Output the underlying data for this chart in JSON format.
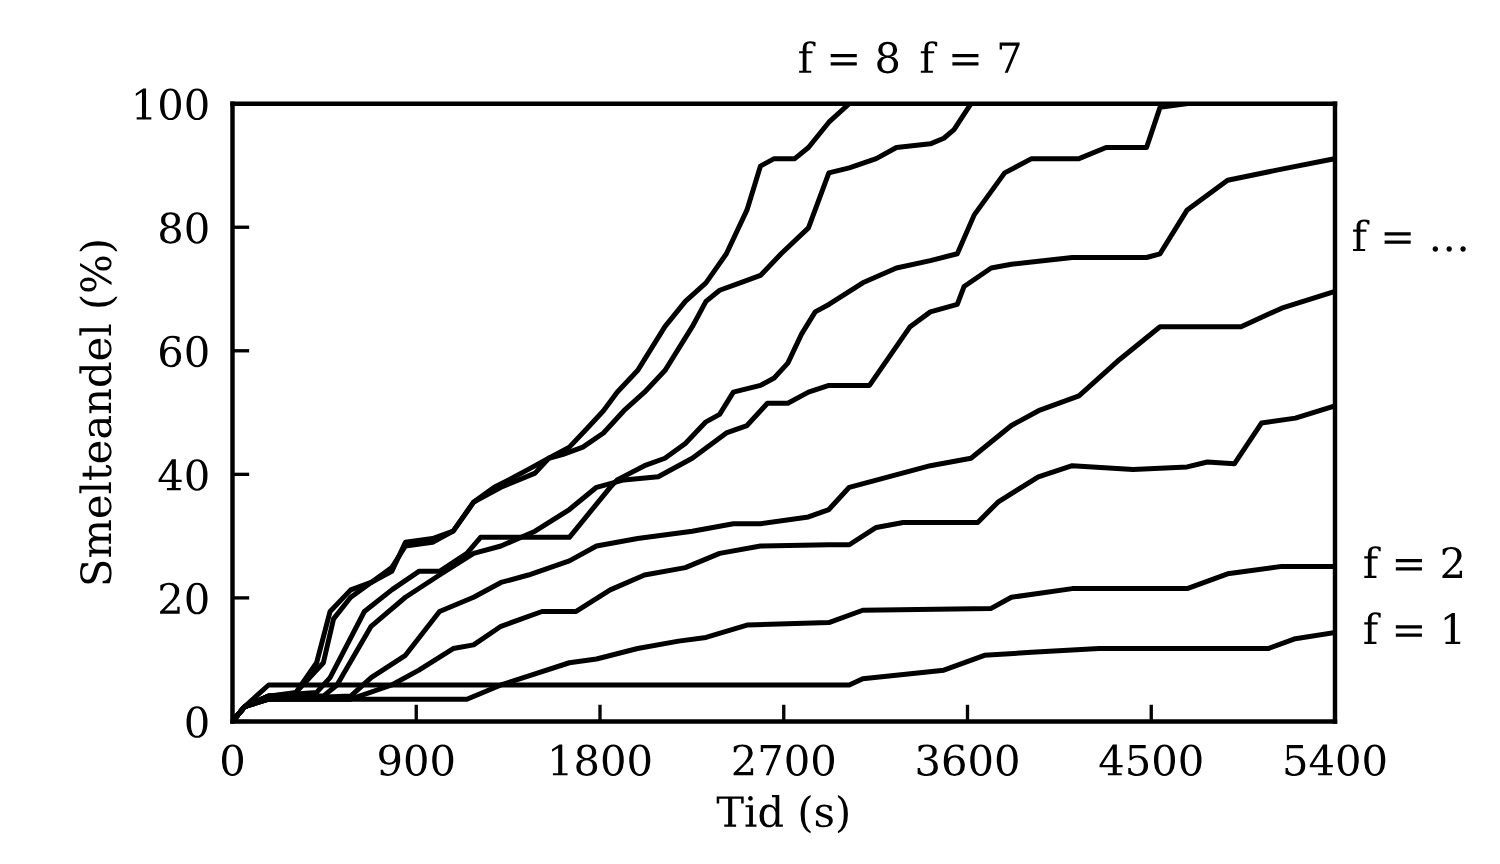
{
  "chart_data": {
    "type": "line",
    "xlabel": "Tid (s)",
    "ylabel": "Smelteandel (%)",
    "xlim": [
      0,
      5400
    ],
    "ylim": [
      0,
      100
    ],
    "xticks": [
      0,
      900,
      1800,
      2700,
      3600,
      4500,
      5400
    ],
    "yticks": [
      0,
      20,
      40,
      60,
      80,
      100
    ],
    "grid": false,
    "legend": false,
    "marker": "none",
    "line_style": "solid",
    "annotations": [
      "f = …"
    ],
    "series": [
      {
        "name": "f = 8",
        "color": "#000000",
        "x": [
          0,
          60,
          177,
          278,
          311,
          412,
          478,
          579,
          679,
          780,
          847,
          980,
          1081,
          1181,
          1282,
          1382,
          1449,
          1549,
          1650,
          1733,
          1817,
          1884,
          1984,
          2118,
          2218,
          2319,
          2419,
          2520,
          2586,
          2653,
          2754,
          2821,
          2921,
          3021
        ],
        "values": [
          0,
          2.4,
          4.1,
          4.1,
          4.7,
          9.5,
          17.8,
          21.3,
          22.5,
          24.9,
          28.4,
          29.0,
          30.8,
          35.5,
          37.9,
          39.6,
          40.8,
          42.6,
          44.4,
          47.3,
          50.3,
          53.3,
          56.8,
          63.9,
          68.0,
          71.0,
          75.7,
          82.8,
          89.9,
          91.1,
          91.1,
          92.9,
          97.0,
          100
        ]
      },
      {
        "name": "f = 7",
        "color": "#000000",
        "x": [
          0,
          60,
          177,
          311,
          378,
          445,
          495,
          579,
          679,
          780,
          847,
          980,
          1081,
          1181,
          1315,
          1482,
          1549,
          1616,
          1716,
          1817,
          1917,
          2018,
          2118,
          2252,
          2319,
          2386,
          2486,
          2586,
          2687,
          2821,
          2921,
          3021,
          3153,
          3252,
          3418,
          3484,
          3534,
          3617
        ],
        "values": [
          0,
          2.4,
          4.1,
          4.7,
          7.1,
          9.5,
          16.6,
          20.1,
          22.5,
          24.3,
          29.0,
          29.6,
          30.8,
          35.5,
          37.9,
          40.2,
          42.6,
          43.2,
          44.4,
          46.7,
          50.3,
          53.3,
          56.8,
          63.9,
          68.0,
          69.8,
          71.0,
          72.2,
          75.7,
          79.9,
          88.8,
          89.6,
          91.1,
          92.9,
          93.5,
          94.4,
          95.8,
          100
        ]
      },
      {
        "color": "#000000",
        "x": [
          0,
          60,
          177,
          412,
          478,
          646,
          780,
          913,
          1014,
          1148,
          1215,
          1650,
          1850,
          1884,
          2018,
          2118,
          2218,
          2319,
          2386,
          2453,
          2586,
          2653,
          2720,
          2787,
          2854,
          2921,
          3087,
          3252,
          3418,
          3550,
          3633,
          3782,
          3914,
          4146,
          4279,
          4477,
          4543,
          4676
        ],
        "values": [
          0,
          2.4,
          4.1,
          4.7,
          7.1,
          17.8,
          21.3,
          24.3,
          24.3,
          27.2,
          29.8,
          29.8,
          37.9,
          39.1,
          41.4,
          42.6,
          45.0,
          48.5,
          49.7,
          53.3,
          54.4,
          55.6,
          58.0,
          62.7,
          66.3,
          67.5,
          71.0,
          73.4,
          74.6,
          75.7,
          82.0,
          88.8,
          91.1,
          91.1,
          92.9,
          92.9,
          99.4,
          100
        ]
      },
      {
        "color": "#000000",
        "x": [
          0,
          60,
          177,
          445,
          512,
          679,
          847,
          1014,
          1181,
          1315,
          1482,
          1650,
          1783,
          1917,
          2085,
          2252,
          2419,
          2520,
          2620,
          2720,
          2821,
          2921,
          3120,
          3319,
          3418,
          3550,
          3583,
          3716,
          3815,
          4113,
          4477,
          4543,
          4676,
          4874,
          5139,
          5400
        ],
        "values": [
          0,
          2.4,
          4.1,
          4.1,
          5.9,
          15.4,
          20.1,
          23.7,
          27.2,
          28.4,
          30.8,
          34.3,
          37.9,
          39.1,
          39.6,
          42.6,
          46.7,
          47.9,
          51.5,
          51.5,
          53.3,
          54.4,
          54.4,
          63.9,
          66.3,
          67.5,
          70.4,
          73.4,
          74.0,
          75.1,
          75.1,
          75.7,
          82.8,
          87.6,
          89.4,
          91.1
        ]
      },
      {
        "color": "#000000",
        "x": [
          0,
          60,
          177,
          579,
          679,
          847,
          1014,
          1181,
          1315,
          1449,
          1650,
          1783,
          1984,
          2252,
          2453,
          2586,
          2821,
          2921,
          3021,
          3418,
          3617,
          3815,
          3948,
          4146,
          4345,
          4543,
          4940,
          5139,
          5400
        ],
        "values": [
          0,
          2.4,
          3.6,
          4.1,
          7.1,
          10.7,
          17.8,
          20.1,
          22.5,
          23.7,
          26.0,
          28.4,
          29.6,
          30.8,
          32.0,
          32.0,
          33.1,
          34.3,
          37.9,
          41.4,
          42.6,
          47.9,
          50.3,
          52.7,
          58.6,
          63.9,
          63.9,
          66.9,
          69.6
        ]
      },
      {
        "color": "#000000",
        "x": [
          0,
          60,
          177,
          579,
          780,
          913,
          1081,
          1181,
          1315,
          1516,
          1683,
          1850,
          2018,
          2218,
          2386,
          2586,
          2921,
          3021,
          3153,
          3285,
          3650,
          3749,
          3947,
          4113,
          4411,
          4676,
          4775,
          4907,
          5040,
          5206,
          5400
        ],
        "values": [
          0,
          2.4,
          3.6,
          3.6,
          5.9,
          8.3,
          11.8,
          12.4,
          15.4,
          17.8,
          17.8,
          21.3,
          23.7,
          24.9,
          27.2,
          28.4,
          28.6,
          28.6,
          31.4,
          32.2,
          32.2,
          35.5,
          39.6,
          41.4,
          40.8,
          41.2,
          42.0,
          41.7,
          48.3,
          49.1,
          51.1
        ]
      },
      {
        "name": "f = 2",
        "color": "#000000",
        "x": [
          0,
          60,
          177,
          1148,
          1315,
          1482,
          1650,
          1783,
          1984,
          2185,
          2319,
          2520,
          2921,
          3087,
          3716,
          3815,
          4113,
          4676,
          4874,
          5139,
          5400
        ],
        "values": [
          0,
          2.4,
          3.6,
          3.6,
          5.9,
          7.7,
          9.5,
          10.1,
          11.8,
          13.0,
          13.6,
          15.6,
          16.0,
          18.0,
          18.3,
          20.1,
          21.5,
          21.5,
          23.9,
          25.1,
          25.1
        ]
      },
      {
        "name": "f = 1",
        "color": "#000000",
        "x": [
          0,
          60,
          177,
          3021,
          3087,
          3484,
          3683,
          3914,
          4245,
          5073,
          5206,
          5400
        ],
        "values": [
          0,
          2.4,
          5.9,
          5.9,
          6.9,
          8.3,
          10.7,
          11.2,
          11.8,
          11.8,
          13.4,
          14.4
        ]
      }
    ]
  }
}
